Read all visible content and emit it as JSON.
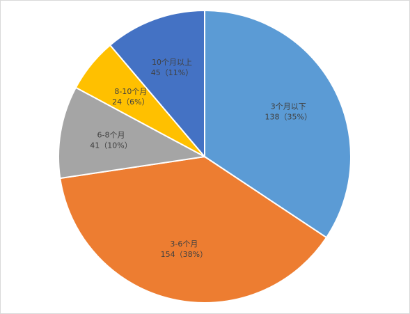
{
  "chart_data": {
    "type": "pie",
    "categories": [
      "3个月以下",
      "3-6个月",
      "6-8个月",
      "8-10个月",
      "10个月以上"
    ],
    "values": [
      138,
      154,
      41,
      24,
      45
    ],
    "value_labels": [
      "138（35%）",
      "154（38%）",
      "41（10%）",
      "24（6%）",
      "45（11%）"
    ],
    "colors": [
      "#5b9bd5",
      "#ed7d31",
      "#a5a5a5",
      "#ffc000",
      "#4472c4"
    ]
  }
}
